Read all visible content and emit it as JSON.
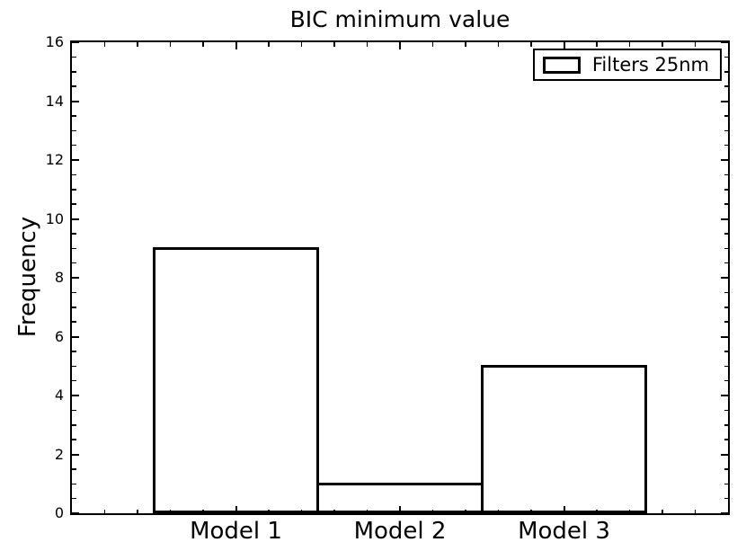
{
  "chart_data": {
    "type": "bar",
    "title": "BIC minimum value",
    "xlabel": "",
    "ylabel": "Frequency",
    "categories": [
      "Model 1",
      "Model 2",
      "Model 3"
    ],
    "values": [
      9,
      1,
      5
    ],
    "bar_centers": [
      1,
      2,
      3
    ],
    "bar_width": 1,
    "xlim": [
      0,
      4
    ],
    "ylim": [
      0,
      16
    ],
    "y_major_ticks": [
      0,
      2,
      4,
      6,
      8,
      10,
      12,
      14,
      16
    ],
    "y_major_tick_labels": [
      "0",
      "2",
      "4",
      "6",
      "8",
      "10",
      "12",
      "14",
      "16"
    ],
    "y_minor_step": 0.5,
    "x_major_ticks": [
      1,
      2,
      3
    ],
    "x_minor_step": 0.2,
    "grid": false,
    "legend": {
      "position": "upper right",
      "entries": [
        {
          "label": "Filters 25nm",
          "swatch_fill": "#ffffff",
          "swatch_edge": "#000000"
        }
      ]
    },
    "colors": {
      "background": "#ffffff",
      "bar_fill": "#ffffff",
      "bar_edge": "#000000",
      "axes": "#000000",
      "text": "#000000"
    }
  }
}
